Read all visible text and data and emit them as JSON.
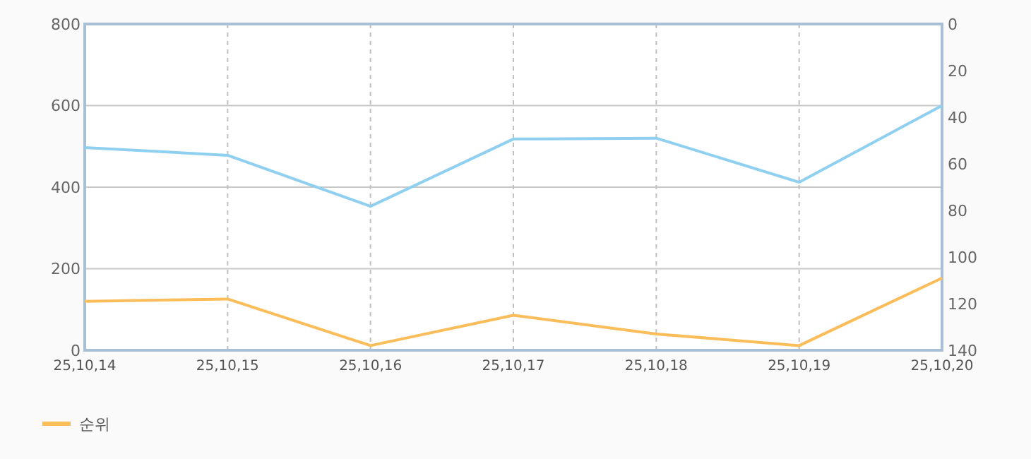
{
  "chart_data": {
    "type": "line",
    "categories": [
      "25,10,14",
      "25,10,15",
      "25,10,16",
      "25,10,17",
      "25,10,18",
      "25,10,19",
      "25,10,20"
    ],
    "series": [
      {
        "color": "#8fd0f0",
        "values": [
          497,
          478,
          353,
          518,
          520,
          412,
          600
        ]
      },
      {
        "name": "순위",
        "color": "#fbbd5a",
        "axis": "y2",
        "values": [
          119,
          118,
          138,
          125,
          133,
          138,
          109
        ]
      }
    ],
    "ylim": [
      0,
      800
    ],
    "yticks": [
      0,
      200,
      400,
      600,
      800
    ],
    "y2lim": [
      140,
      0
    ],
    "y2ticks": [
      0,
      20,
      40,
      60,
      80,
      100,
      120,
      140
    ],
    "grid": true,
    "legend": "bottom left",
    "marker": "none",
    "line_style": "solid"
  }
}
